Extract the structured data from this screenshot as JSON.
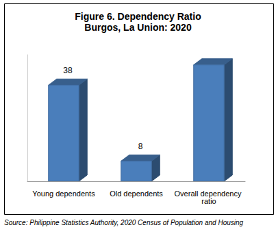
{
  "chart_data": {
    "type": "bar",
    "title": "Figure 6. Dependency Ratio",
    "subtitle": "Burgos, La Union: 2020",
    "categories": [
      "Young dependents",
      "Old dependents",
      "Overall dependency ratio"
    ],
    "values": [
      38,
      8,
      46
    ],
    "color": "#4a7ebb",
    "ylim": [
      0,
      50
    ],
    "grid": false,
    "data_labels": true,
    "tick_labels": "x",
    "annotations": [
      "Source: Philippine Statistics Authority, 2020 Census of Population and Housing"
    ]
  }
}
